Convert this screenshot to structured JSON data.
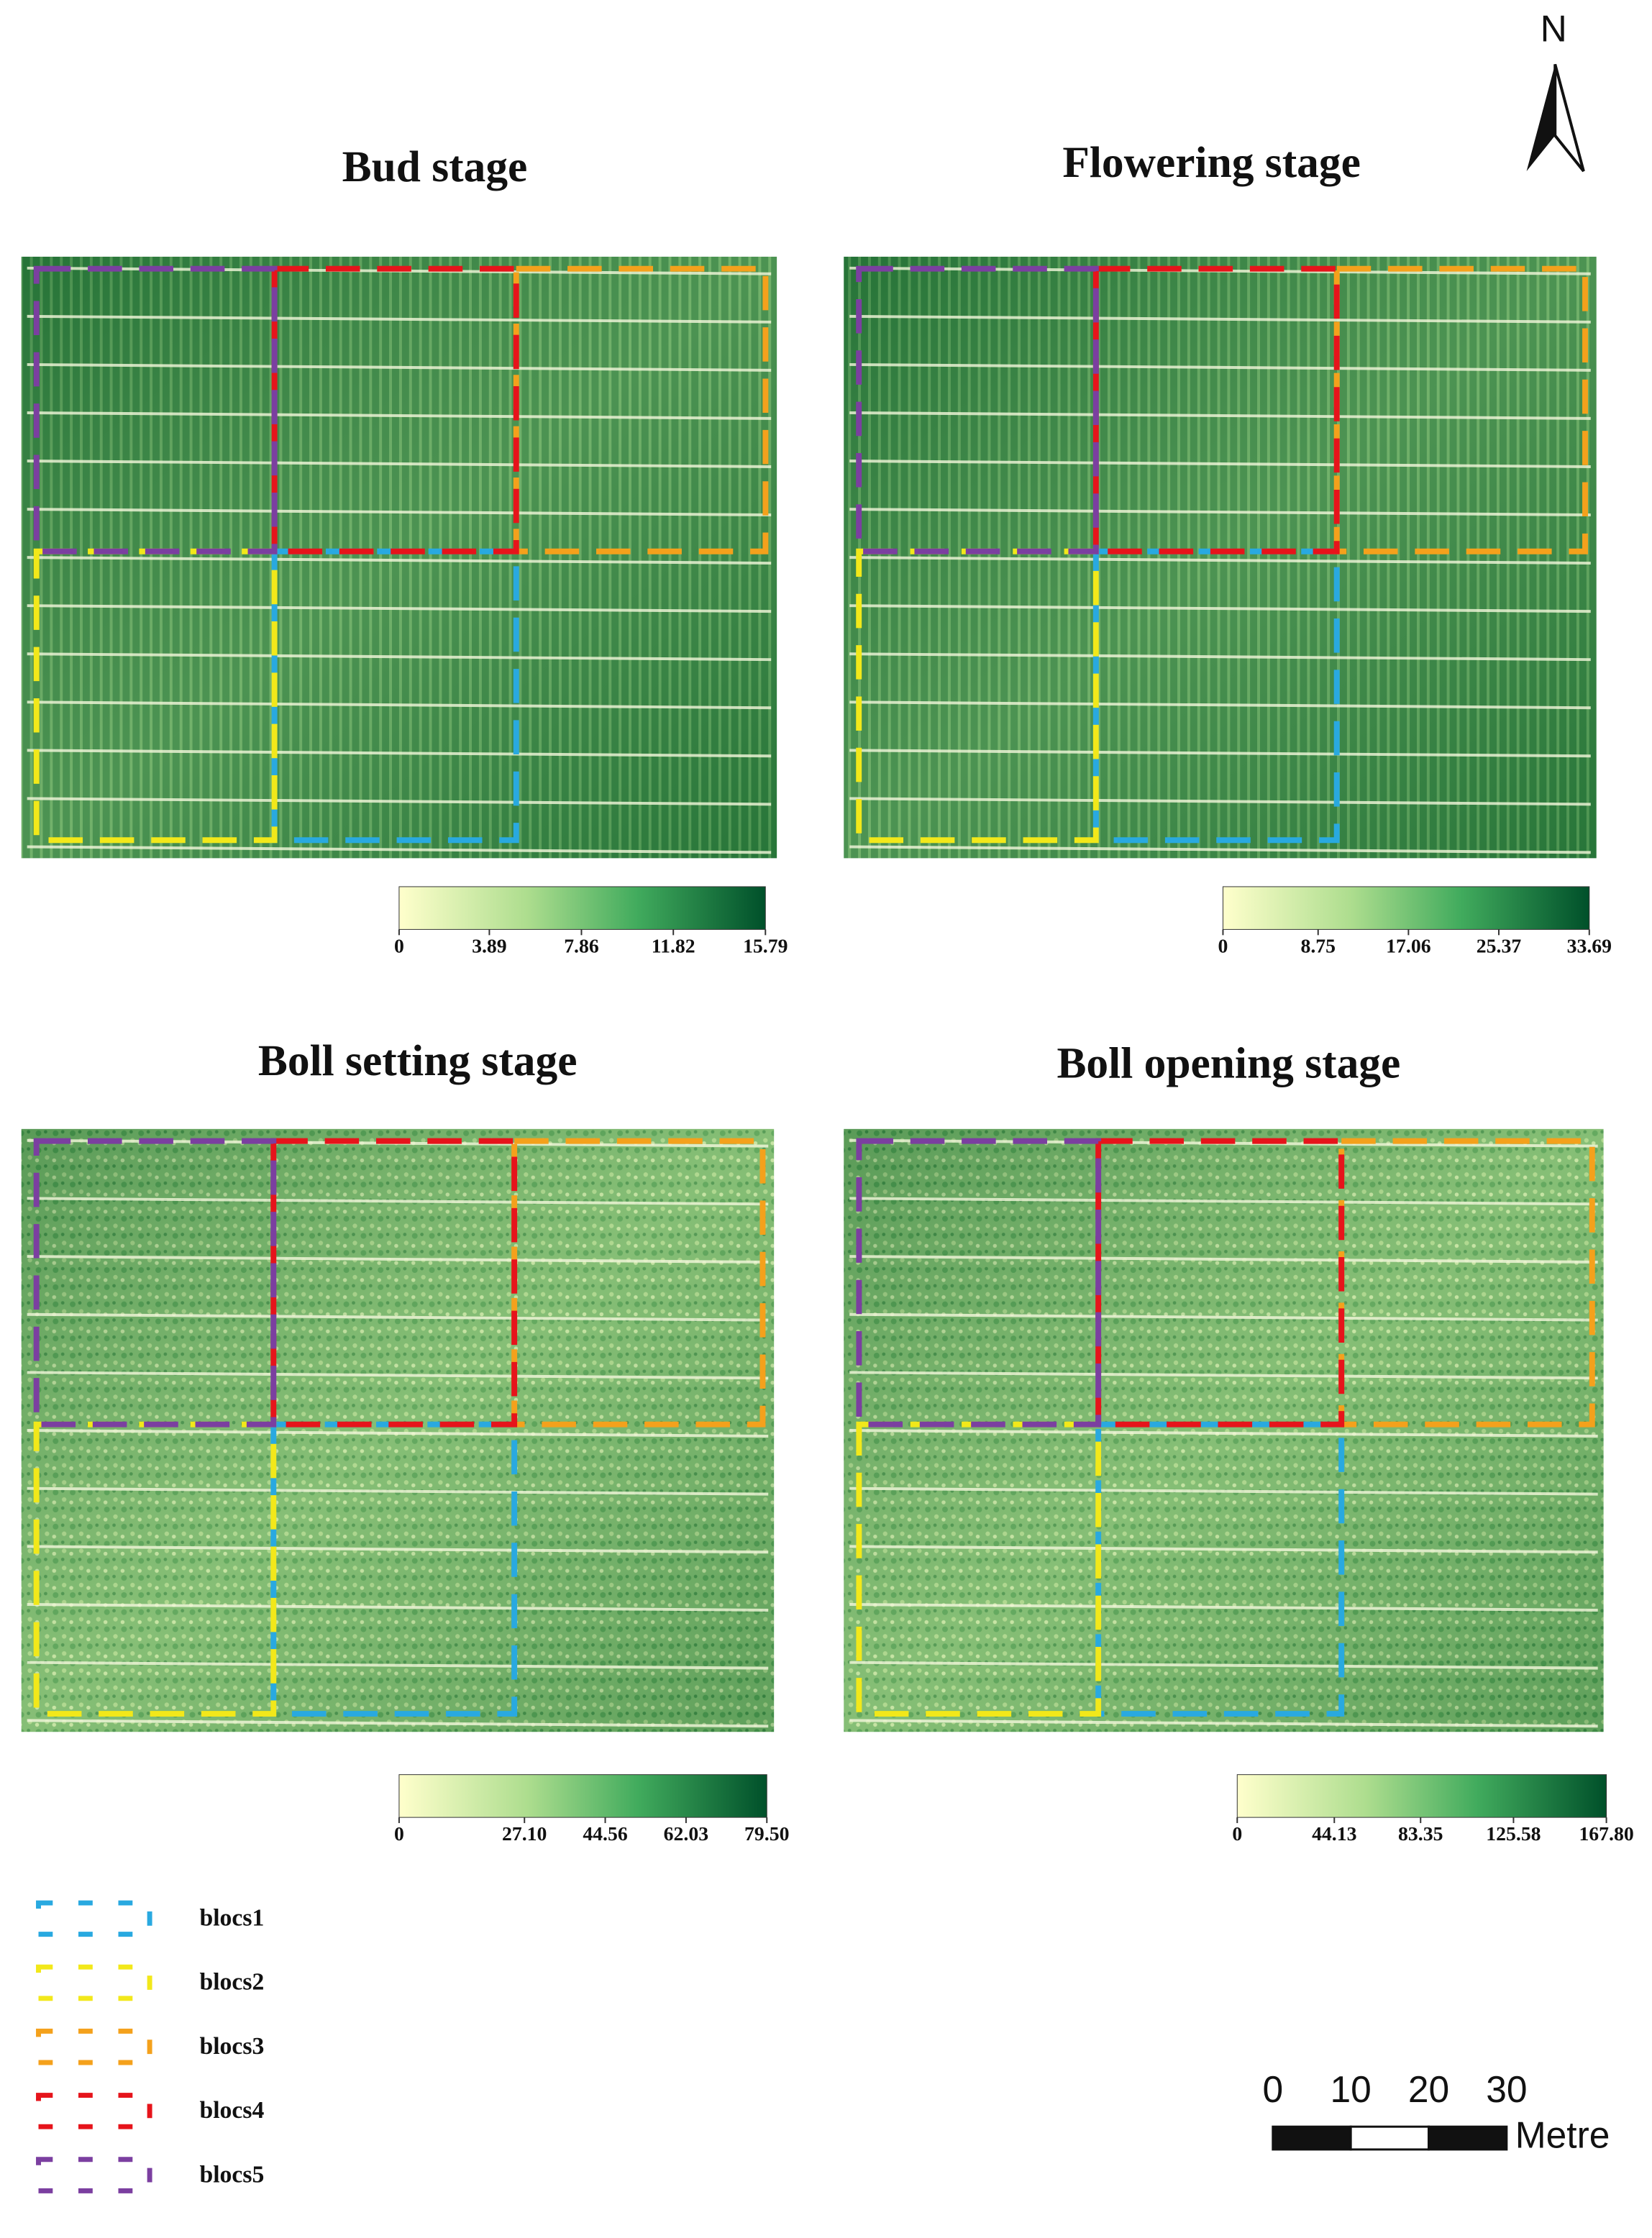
{
  "north": "N",
  "panels": [
    {
      "title": "Bud stage",
      "colorbar_ticks": [
        0,
        3.89,
        7.86,
        11.82,
        15.79
      ]
    },
    {
      "title": "Flowering stage",
      "colorbar_ticks": [
        0,
        8.75,
        17.06,
        25.37,
        33.69
      ]
    },
    {
      "title": "Boll setting stage",
      "colorbar_ticks": [
        0,
        {
          "value": 27.1,
          "label": "27.10"
        },
        44.56,
        62.03,
        {
          "value": 79.5,
          "label": "79.50"
        }
      ]
    },
    {
      "title": "Boll opening stage",
      "colorbar_ticks": [
        0,
        44.13,
        83.35,
        125.58,
        {
          "value": 167.8,
          "label": "167.80"
        }
      ]
    }
  ],
  "legend": [
    {
      "label": "blocs1",
      "color": "#29a9e0"
    },
    {
      "label": "blocs2",
      "color": "#f2e81a"
    },
    {
      "label": "blocs3",
      "color": "#f4a11c"
    },
    {
      "label": "blocs4",
      "color": "#e6141b"
    },
    {
      "label": "blocs5",
      "color": "#7b3fa0"
    }
  ],
  "scale_bar": {
    "ticks": [
      0,
      10,
      20,
      30
    ],
    "unit": "Metre"
  }
}
